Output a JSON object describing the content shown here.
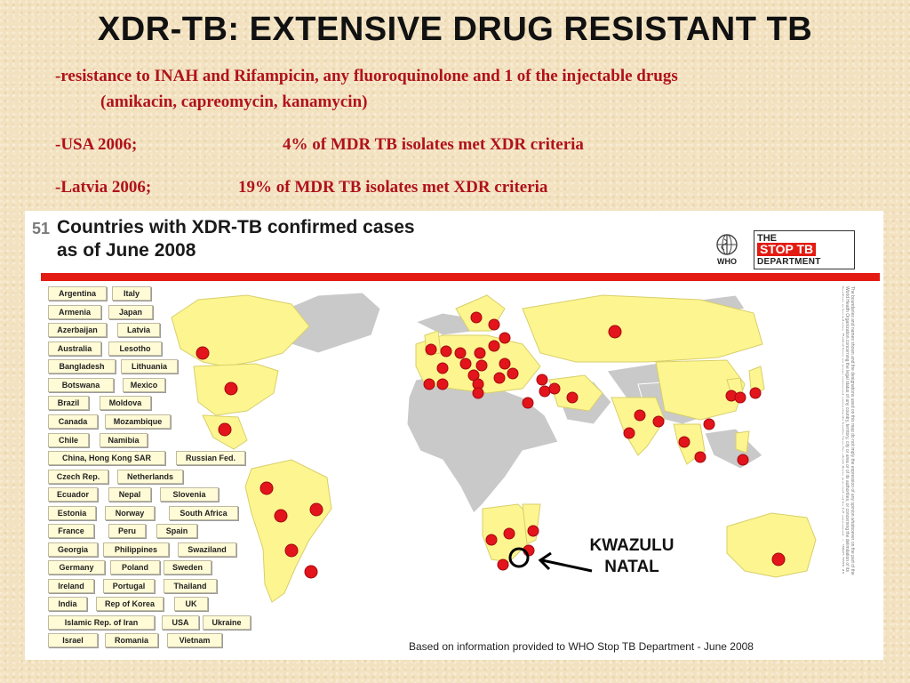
{
  "slide": {
    "title": "XDR-TB: EXTENSIVE DRUG RESISTANT TB",
    "bullets": [
      "-resistance to INAH and Rifampicin, any fluoroquinolone and 1 of the injectable drugs",
      "(amikacin, capreomycin, kanamycin)",
      "-USA 2006;",
      "4% of MDR TB isolates met XDR criteria",
      "-Latvia 2006;",
      "19% of MDR TB isolates met XDR criteria"
    ],
    "slide_number": "51"
  },
  "map": {
    "heading_line1": "Countries with XDR-TB confirmed cases",
    "heading_line2": "as of June 2008",
    "who_label": "WHO",
    "stoptb_line1": "THE",
    "stoptb_line2": "STOP TB",
    "stoptb_line3": "DEPARTMENT",
    "countries": [
      "Argentina",
      "Italy",
      "Armenia",
      "Japan",
      "Azerbaijan",
      "Latvia",
      "Australia",
      "Lesotho",
      "Bangladesh",
      "Lithuania",
      "Botswana",
      "Mexico",
      "Brazil",
      "Moldova",
      "Canada",
      "Mozambique",
      "Chile",
      "Namibia",
      "China, Hong Kong SAR",
      "Russian Fed.",
      "Czech Rep.",
      "Netherlands",
      "Ecuador",
      "Nepal",
      "Slovenia",
      "Estonia",
      "Norway",
      "South Africa",
      "France",
      "Peru",
      "Spain",
      "Georgia",
      "Philippines",
      "Swaziland",
      "Germany",
      "Poland",
      "Sweden",
      "Ireland",
      "Portugal",
      "Thailand",
      "India",
      "Rep of Korea",
      "UK",
      "Islamic Rep. of Iran",
      "USA",
      "Ukraine",
      "Israel",
      "Romania",
      "Vietnam"
    ],
    "source_note": "Based on information provided to WHO Stop TB Department    -    June 2008",
    "colors": {
      "affected_land": "#fdf58f",
      "other_land": "#c9c9c9",
      "marker": "#e3141b",
      "accent_bar": "#e31b12"
    }
  },
  "callout": {
    "line1": "KWAZULU",
    "line2": "NATAL"
  }
}
